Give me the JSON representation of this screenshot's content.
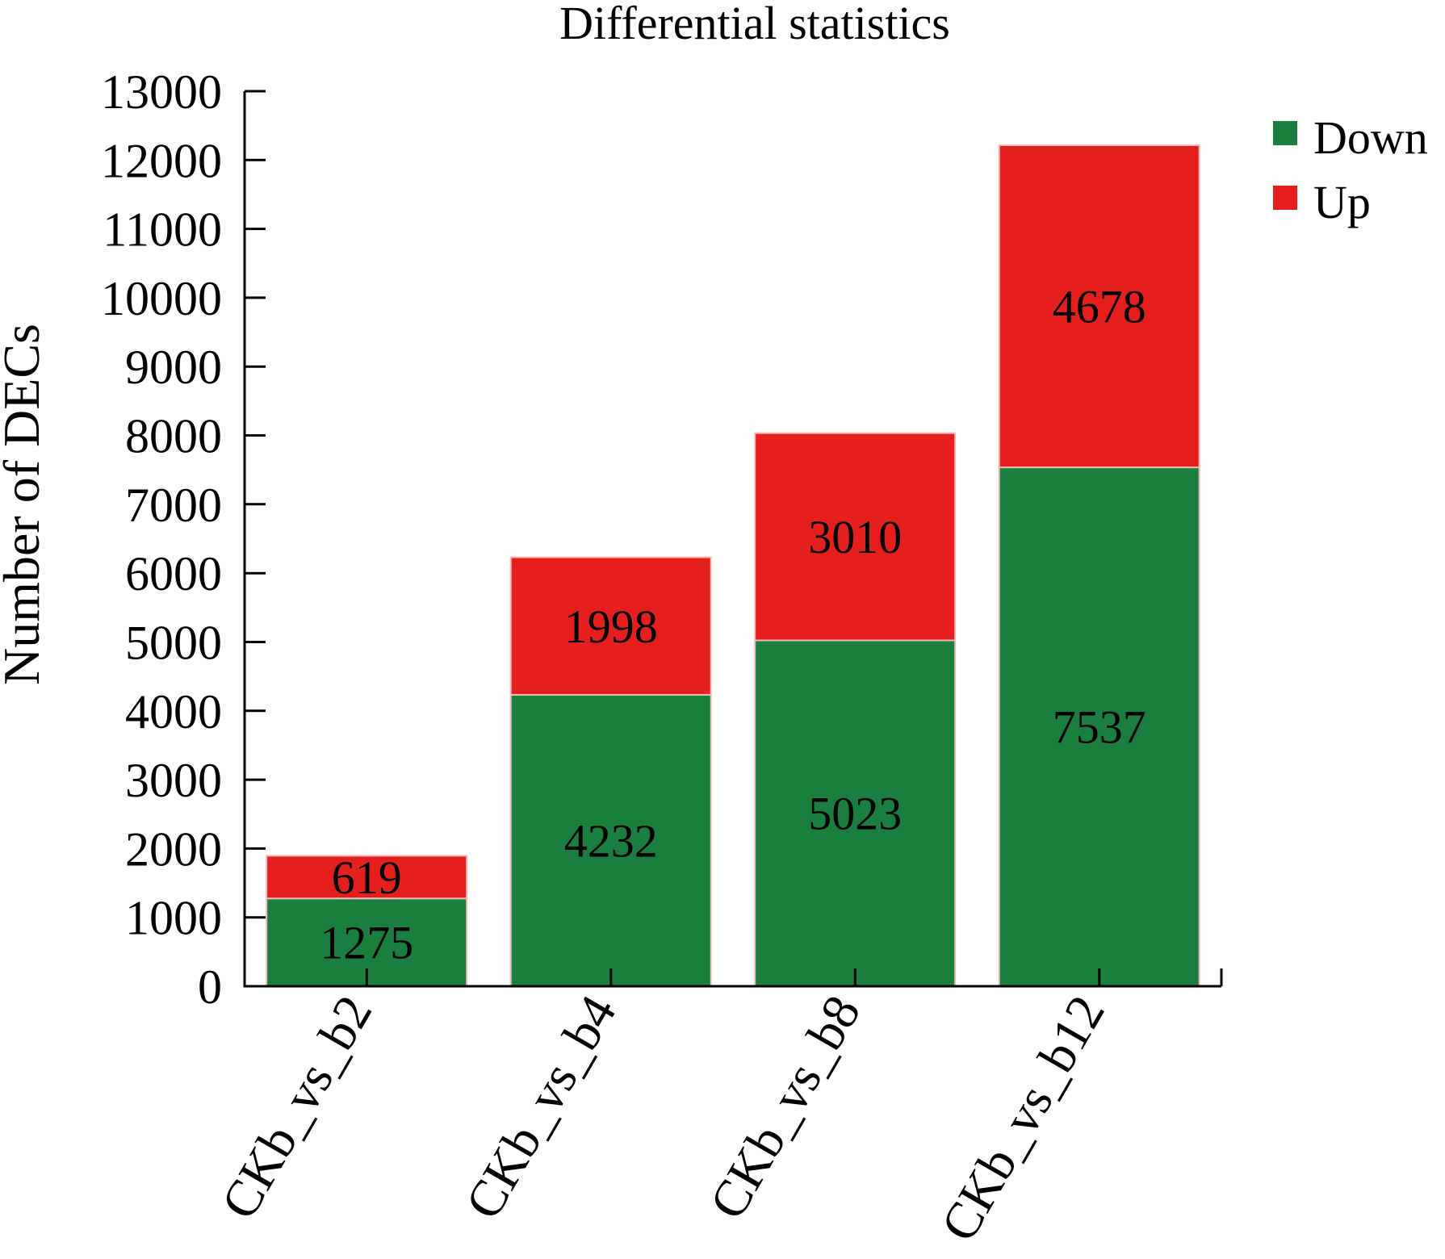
{
  "chart_data": {
    "type": "bar",
    "stacked": true,
    "title": "Differential statistics",
    "xlabel": "",
    "ylabel": "Number of DECs",
    "ylim": [
      0,
      13000
    ],
    "yticks": [
      0,
      1000,
      2000,
      3000,
      4000,
      5000,
      6000,
      7000,
      8000,
      9000,
      10000,
      11000,
      12000,
      13000
    ],
    "categories": [
      "CKb_vs_b2",
      "CKb_vs_b4",
      "CKb_vs_b8",
      "CKb_vs_b12"
    ],
    "series": [
      {
        "name": "Down",
        "color": "#1a7f3e",
        "values": [
          1275,
          4232,
          5023,
          7537
        ]
      },
      {
        "name": "Up",
        "color": "#e41f1d",
        "values": [
          619,
          1998,
          3010,
          4678
        ]
      }
    ],
    "grid": false,
    "legend_position": "top-right"
  }
}
